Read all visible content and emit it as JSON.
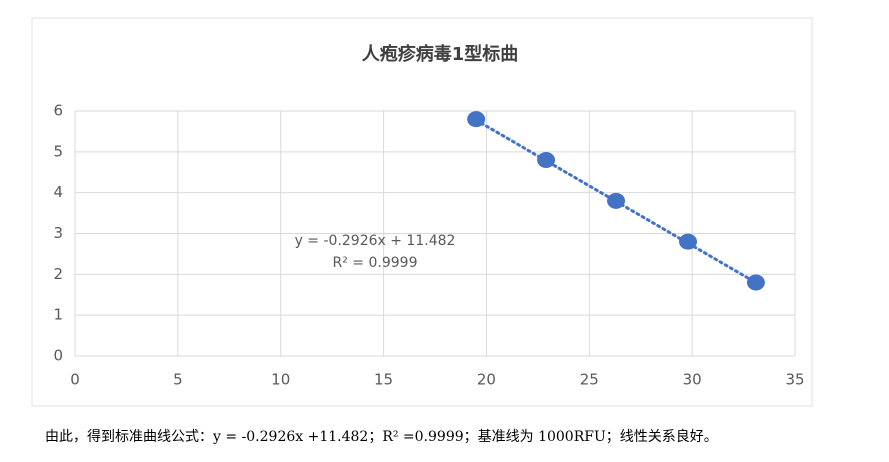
{
  "chart_data": {
    "type": "scatter",
    "title": "人疱疹病毒1型标曲",
    "x": [
      19.5,
      22.9,
      26.3,
      29.8,
      33.1
    ],
    "values": [
      5.8,
      4.8,
      3.8,
      2.8,
      1.8
    ],
    "color": "#4472c4",
    "xlim": [
      0,
      35
    ],
    "xticks": [
      0,
      5,
      10,
      15,
      20,
      25,
      30,
      35
    ],
    "ylim": [
      0,
      6
    ],
    "yticks": [
      0,
      1,
      2,
      3,
      4,
      5,
      6
    ],
    "grid": true,
    "trendline": {
      "slope": -0.2926,
      "intercept": 11.482,
      "equation": "y = -0.2926x + 11.482",
      "r2": "R² = 0.9999"
    }
  },
  "caption": "由此，得到标准曲线公式：y = -0.2926x +11.482；R² =0.9999；基准线为 1000RFU；线性关系良好。"
}
